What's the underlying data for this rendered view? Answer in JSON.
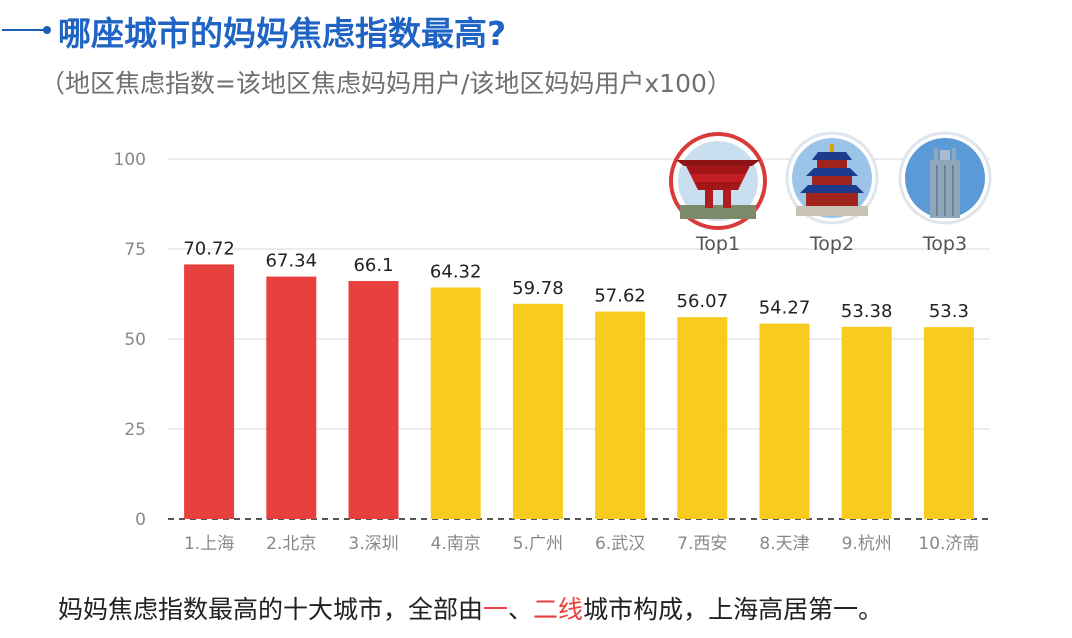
{
  "title": "哪座城市的妈妈焦虑指数最高?",
  "subtitle": "（地区焦虑指数=该地区焦虑妈妈用户/该地区妈妈用户x100）",
  "footer": {
    "part1": "妈妈焦虑指数最高的十大城市，全部由",
    "hl1": "一",
    "sep": "、",
    "hl2": "二线",
    "part2": "城市构成，上海高居第一。"
  },
  "badges": [
    {
      "label": "Top1",
      "icon": "expo-pavilion-icon",
      "ring_color": "#d93a3a"
    },
    {
      "label": "Top2",
      "icon": "temple-of-heaven-icon",
      "ring_color": "#dfe5ec"
    },
    {
      "label": "Top3",
      "icon": "skyscraper-icon",
      "ring_color": "#dfe5ec"
    }
  ],
  "colors": {
    "top3": "#e8403e",
    "others": "#f8cb1f",
    "value_label": "#222222",
    "tick_label": "#888888"
  },
  "chart_data": {
    "type": "bar",
    "categories": [
      "1.上海",
      "2.北京",
      "3.深圳",
      "4.南京",
      "5.广州",
      "6.武汉",
      "7.西安",
      "8.天津",
      "9.杭州",
      "10.济南"
    ],
    "values": [
      70.72,
      67.34,
      66.1,
      64.32,
      59.78,
      57.62,
      56.07,
      54.27,
      53.38,
      53.3
    ],
    "value_labels": [
      "70.72",
      "67.34",
      "66.1",
      "64.32",
      "59.78",
      "57.62",
      "56.07",
      "54.27",
      "53.38",
      "53.3"
    ],
    "ylim": [
      0,
      100
    ],
    "yticks": [
      0,
      25,
      50,
      75,
      100
    ],
    "highlight_count": 3,
    "grid": true,
    "title": "",
    "xlabel": "",
    "ylabel": ""
  }
}
